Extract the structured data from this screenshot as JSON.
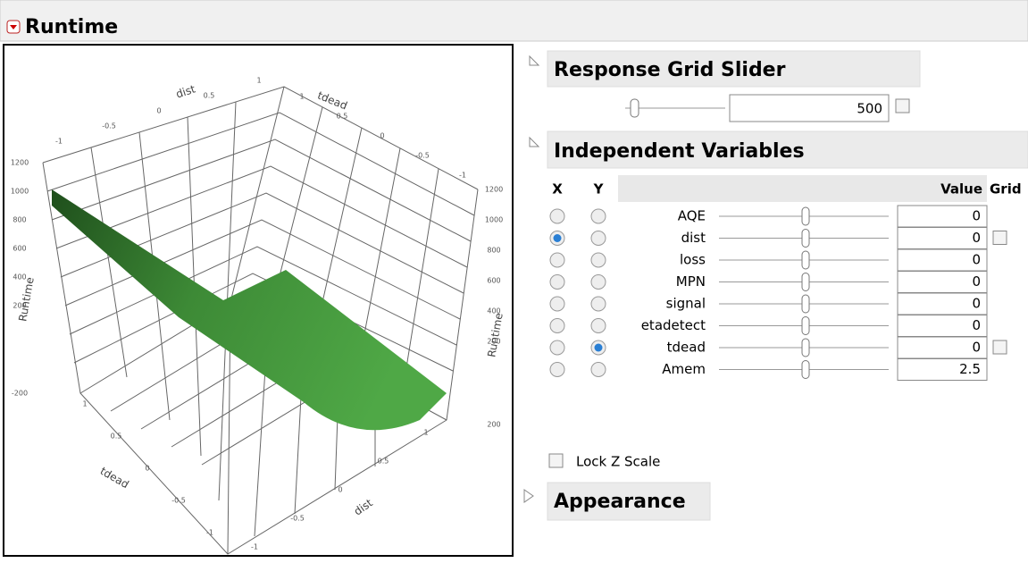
{
  "header": {
    "title": "Runtime"
  },
  "plot": {
    "axis_titles": [
      "dist",
      "tdead",
      "Runtime",
      "Runtime",
      "tdead",
      "dist"
    ],
    "top_dist_ticks": [
      "-1",
      "-0.5",
      "0",
      "0.5",
      "1"
    ],
    "top_tdead_ticks": [
      "1",
      "0.5",
      "0",
      "-0.5",
      "-1"
    ],
    "left_z_ticks": [
      "1200",
      "1000",
      "800",
      "600",
      "400",
      "200",
      "-200"
    ],
    "right_z_ticks": [
      "1200",
      "1000",
      "800",
      "600",
      "400",
      "200",
      "200"
    ],
    "bottom_tdead_ticks": [
      "1",
      "0.5",
      "0",
      "-0.5",
      "-1"
    ],
    "bottom_dist_ticks": [
      "-1",
      "-0.5",
      "0",
      "0.5",
      "1"
    ]
  },
  "response_grid_slider": {
    "title": "Response Grid Slider",
    "value": "500"
  },
  "independent_variables": {
    "title": "Independent Variables",
    "columns": [
      "X",
      "Y",
      "Value",
      "Grid"
    ],
    "rows": [
      {
        "name": "AQE",
        "value": "0",
        "x": false,
        "y": false,
        "grid": false
      },
      {
        "name": "dist",
        "value": "0",
        "x": true,
        "y": false,
        "grid": true
      },
      {
        "name": "loss",
        "value": "0",
        "x": false,
        "y": false,
        "grid": false
      },
      {
        "name": "MPN",
        "value": "0",
        "x": false,
        "y": false,
        "grid": false
      },
      {
        "name": "signal",
        "value": "0",
        "x": false,
        "y": false,
        "grid": false
      },
      {
        "name": "etadetect",
        "value": "0",
        "x": false,
        "y": false,
        "grid": false
      },
      {
        "name": "tdead",
        "value": "0",
        "x": false,
        "y": true,
        "grid": true
      },
      {
        "name": "Amem",
        "value": "2.5",
        "x": false,
        "y": false,
        "grid": false
      }
    ]
  },
  "lock_z_scale": "Lock Z Scale",
  "appearance": "Appearance"
}
